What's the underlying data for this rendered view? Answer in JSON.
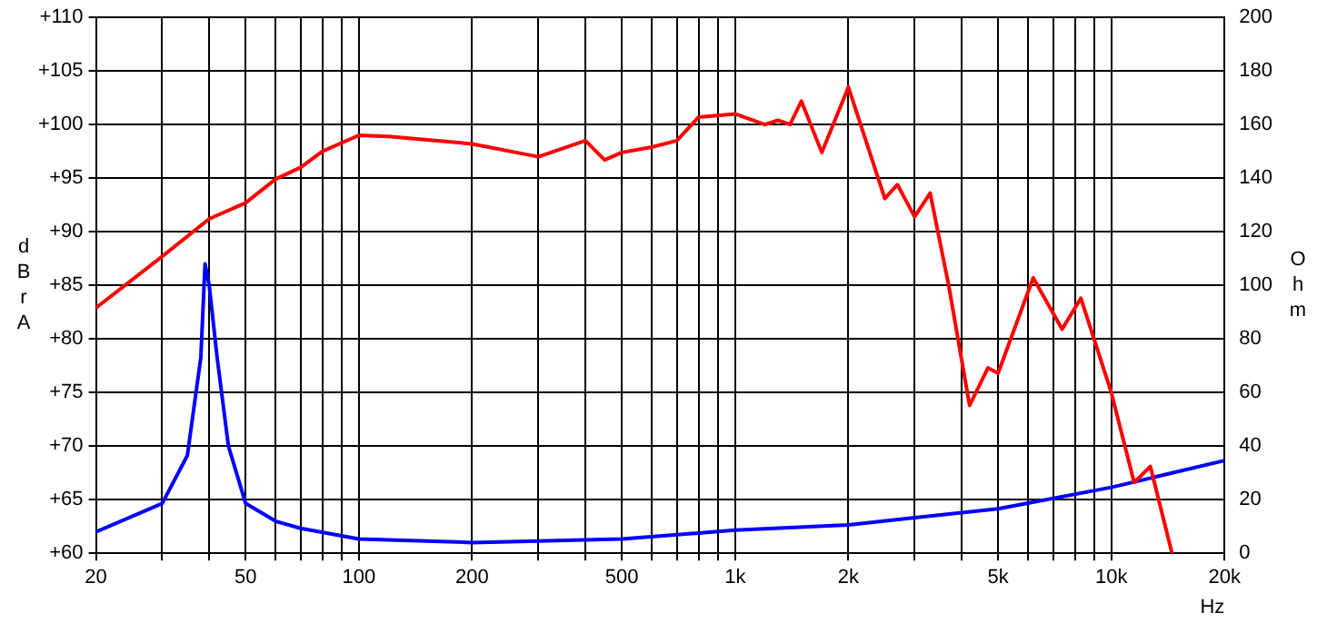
{
  "chart_data": {
    "type": "line",
    "xlabel": "Hz",
    "ylabel": "dBrA",
    "y2label": "Ohm",
    "log": "x",
    "grid": true,
    "legend": false,
    "marker": "none",
    "line_style": "solid",
    "xlim": [
      20,
      20000
    ],
    "xticks": [
      20,
      {
        "value": 30,
        "label": null
      },
      {
        "value": 40,
        "label": null
      },
      50,
      {
        "value": 60,
        "label": null
      },
      {
        "value": 70,
        "label": null
      },
      {
        "value": 80,
        "label": null
      },
      {
        "value": 90,
        "label": null
      },
      100,
      200,
      {
        "value": 300,
        "label": null
      },
      {
        "value": 400,
        "label": null
      },
      500,
      {
        "value": 600,
        "label": null
      },
      {
        "value": 700,
        "label": null
      },
      {
        "value": 800,
        "label": null
      },
      {
        "value": 900,
        "label": null
      },
      {
        "value": 1000,
        "label": "1k"
      },
      {
        "value": 2000,
        "label": "2k"
      },
      {
        "value": 3000,
        "label": null
      },
      {
        "value": 4000,
        "label": null
      },
      {
        "value": 5000,
        "label": "5k"
      },
      {
        "value": 6000,
        "label": null
      },
      {
        "value": 7000,
        "label": null
      },
      {
        "value": 8000,
        "label": null
      },
      {
        "value": 9000,
        "label": null
      },
      {
        "value": 10000,
        "label": "10k"
      },
      {
        "value": 20000,
        "label": "20k"
      }
    ],
    "ylim": [
      60,
      110
    ],
    "yticks": [
      {
        "value": 60,
        "label": "+60"
      },
      {
        "value": 65,
        "label": "+65"
      },
      {
        "value": 70,
        "label": "+70"
      },
      {
        "value": 75,
        "label": "+75"
      },
      {
        "value": 80,
        "label": "+80"
      },
      {
        "value": 85,
        "label": "+85"
      },
      {
        "value": 90,
        "label": "+90"
      },
      {
        "value": 95,
        "label": "+95"
      },
      {
        "value": 100,
        "label": "+100"
      },
      {
        "value": 105,
        "label": "+105"
      },
      {
        "value": 110,
        "label": "+110"
      }
    ],
    "y2lim": [
      0,
      200
    ],
    "y2ticks": [
      0,
      20,
      40,
      60,
      80,
      100,
      120,
      140,
      160,
      180,
      200
    ],
    "series": [
      {
        "color": "#ff0000",
        "x": [
          20,
          30,
          40,
          50,
          60,
          70,
          80,
          100,
          120,
          200,
          300,
          400,
          450,
          500,
          600,
          700,
          800,
          1000,
          1200,
          1300,
          1400,
          1500,
          1700,
          2000,
          2500,
          2700,
          3000,
          3300,
          3700,
          4200,
          4700,
          5000,
          6200,
          7400,
          8300,
          10000,
          11500,
          12700,
          14500
        ],
        "values": [
          82.9,
          87.7,
          91.2,
          92.7,
          94.9,
          96.0,
          97.5,
          99.0,
          98.9,
          98.2,
          97.0,
          98.5,
          96.7,
          97.4,
          97.9,
          98.5,
          100.7,
          101.0,
          100.0,
          100.4,
          100.0,
          102.2,
          97.4,
          103.5,
          93.1,
          94.4,
          91.4,
          93.6,
          84.9,
          73.8,
          77.3,
          76.8,
          85.7,
          80.9,
          83.8,
          75.0,
          66.6,
          68.1,
          60.0
        ]
      },
      {
        "color": "#0000ff",
        "axis": "y2",
        "x": [
          20,
          30,
          35,
          38,
          39,
          40,
          42,
          45,
          50,
          60,
          70,
          100,
          200,
          500,
          1000,
          2000,
          5000,
          10000,
          20000
        ],
        "values": [
          8.0,
          18.6,
          36.5,
          73,
          108,
          100,
          73,
          40,
          18.6,
          12,
          9.3,
          5.3,
          4.0,
          5.3,
          8.6,
          10.6,
          16.6,
          24.6,
          34.6
        ]
      }
    ]
  }
}
